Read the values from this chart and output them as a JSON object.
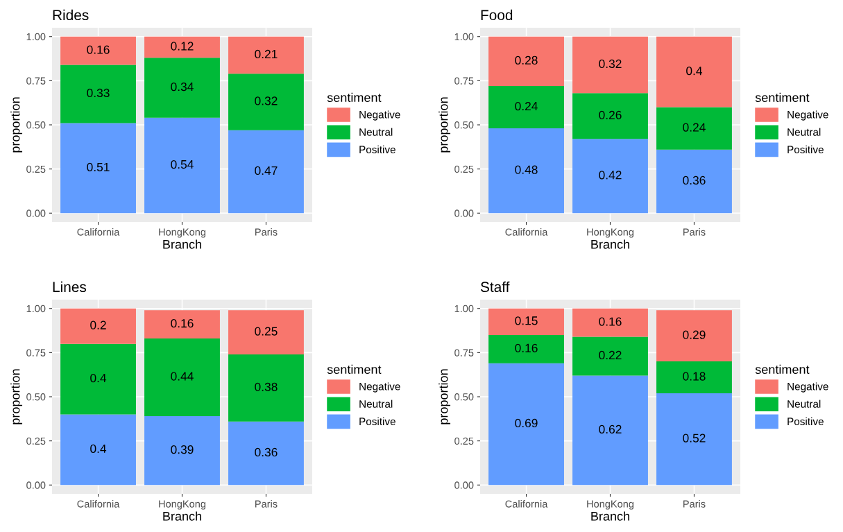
{
  "chart_data": [
    {
      "type": "bar",
      "stacked": true,
      "title": "Rides",
      "xlabel": "Branch",
      "ylabel": "proportion",
      "legend_title": "sentiment",
      "legend": "right",
      "grid": true,
      "data_labels": true,
      "categories": [
        "California",
        "HongKong",
        "Paris"
      ],
      "ylim": [
        -0.05,
        1.05
      ],
      "yticks": [
        {
          "value": 0,
          "label": "0.00"
        },
        {
          "value": 0.25,
          "label": "0.25"
        },
        {
          "value": 0.5,
          "label": "0.50"
        },
        {
          "value": 0.75,
          "label": "0.75"
        },
        {
          "value": 1,
          "label": "1.00"
        }
      ],
      "series": [
        {
          "name": "Positive",
          "color": "#619cff",
          "values": [
            0.51,
            0.54,
            0.47
          ]
        },
        {
          "name": "Neutral",
          "color": "#00ba38",
          "values": [
            0.33,
            0.34,
            0.32
          ]
        },
        {
          "name": "Negative",
          "color": "#f8766d",
          "values": [
            0.16,
            0.12,
            0.21
          ]
        }
      ]
    },
    {
      "type": "bar",
      "stacked": true,
      "title": "Food",
      "xlabel": "Branch",
      "ylabel": "proportion",
      "legend_title": "sentiment",
      "legend": "right",
      "grid": true,
      "data_labels": true,
      "categories": [
        "California",
        "HongKong",
        "Paris"
      ],
      "ylim": [
        -0.05,
        1.05
      ],
      "yticks": [
        {
          "value": 0,
          "label": "0.00"
        },
        {
          "value": 0.25,
          "label": "0.25"
        },
        {
          "value": 0.5,
          "label": "0.50"
        },
        {
          "value": 0.75,
          "label": "0.75"
        },
        {
          "value": 1,
          "label": "1.00"
        }
      ],
      "series": [
        {
          "name": "Positive",
          "color": "#619cff",
          "values": [
            0.48,
            0.42,
            0.36
          ]
        },
        {
          "name": "Neutral",
          "color": "#00ba38",
          "values": [
            0.24,
            0.26,
            0.24
          ]
        },
        {
          "name": "Negative",
          "color": "#f8766d",
          "values": [
            0.28,
            0.32,
            0.4
          ]
        }
      ]
    },
    {
      "type": "bar",
      "stacked": true,
      "title": "Lines",
      "xlabel": "Branch",
      "ylabel": "proportion",
      "legend_title": "sentiment",
      "legend": "right",
      "grid": true,
      "data_labels": true,
      "categories": [
        "California",
        "HongKong",
        "Paris"
      ],
      "ylim": [
        -0.05,
        1.05
      ],
      "yticks": [
        {
          "value": 0,
          "label": "0.00"
        },
        {
          "value": 0.25,
          "label": "0.25"
        },
        {
          "value": 0.5,
          "label": "0.50"
        },
        {
          "value": 0.75,
          "label": "0.75"
        },
        {
          "value": 1,
          "label": "1.00"
        }
      ],
      "series": [
        {
          "name": "Positive",
          "color": "#619cff",
          "values": [
            0.4,
            0.39,
            0.36
          ]
        },
        {
          "name": "Neutral",
          "color": "#00ba38",
          "values": [
            0.4,
            0.44,
            0.38
          ]
        },
        {
          "name": "Negative",
          "color": "#f8766d",
          "values": [
            0.2,
            0.16,
            0.25
          ]
        }
      ]
    },
    {
      "type": "bar",
      "stacked": true,
      "title": "Staff",
      "xlabel": "Branch",
      "ylabel": "proportion",
      "legend_title": "sentiment",
      "legend": "right",
      "grid": true,
      "data_labels": true,
      "categories": [
        "California",
        "HongKong",
        "Paris"
      ],
      "ylim": [
        -0.05,
        1.05
      ],
      "yticks": [
        {
          "value": 0,
          "label": "0.00"
        },
        {
          "value": 0.25,
          "label": "0.25"
        },
        {
          "value": 0.5,
          "label": "0.50"
        },
        {
          "value": 0.75,
          "label": "0.75"
        },
        {
          "value": 1,
          "label": "1.00"
        }
      ],
      "series": [
        {
          "name": "Positive",
          "color": "#619cff",
          "values": [
            0.69,
            0.62,
            0.52
          ]
        },
        {
          "name": "Neutral",
          "color": "#00ba38",
          "values": [
            0.16,
            0.22,
            0.18
          ]
        },
        {
          "name": "Negative",
          "color": "#f8766d",
          "values": [
            0.15,
            0.16,
            0.29
          ]
        }
      ]
    }
  ]
}
